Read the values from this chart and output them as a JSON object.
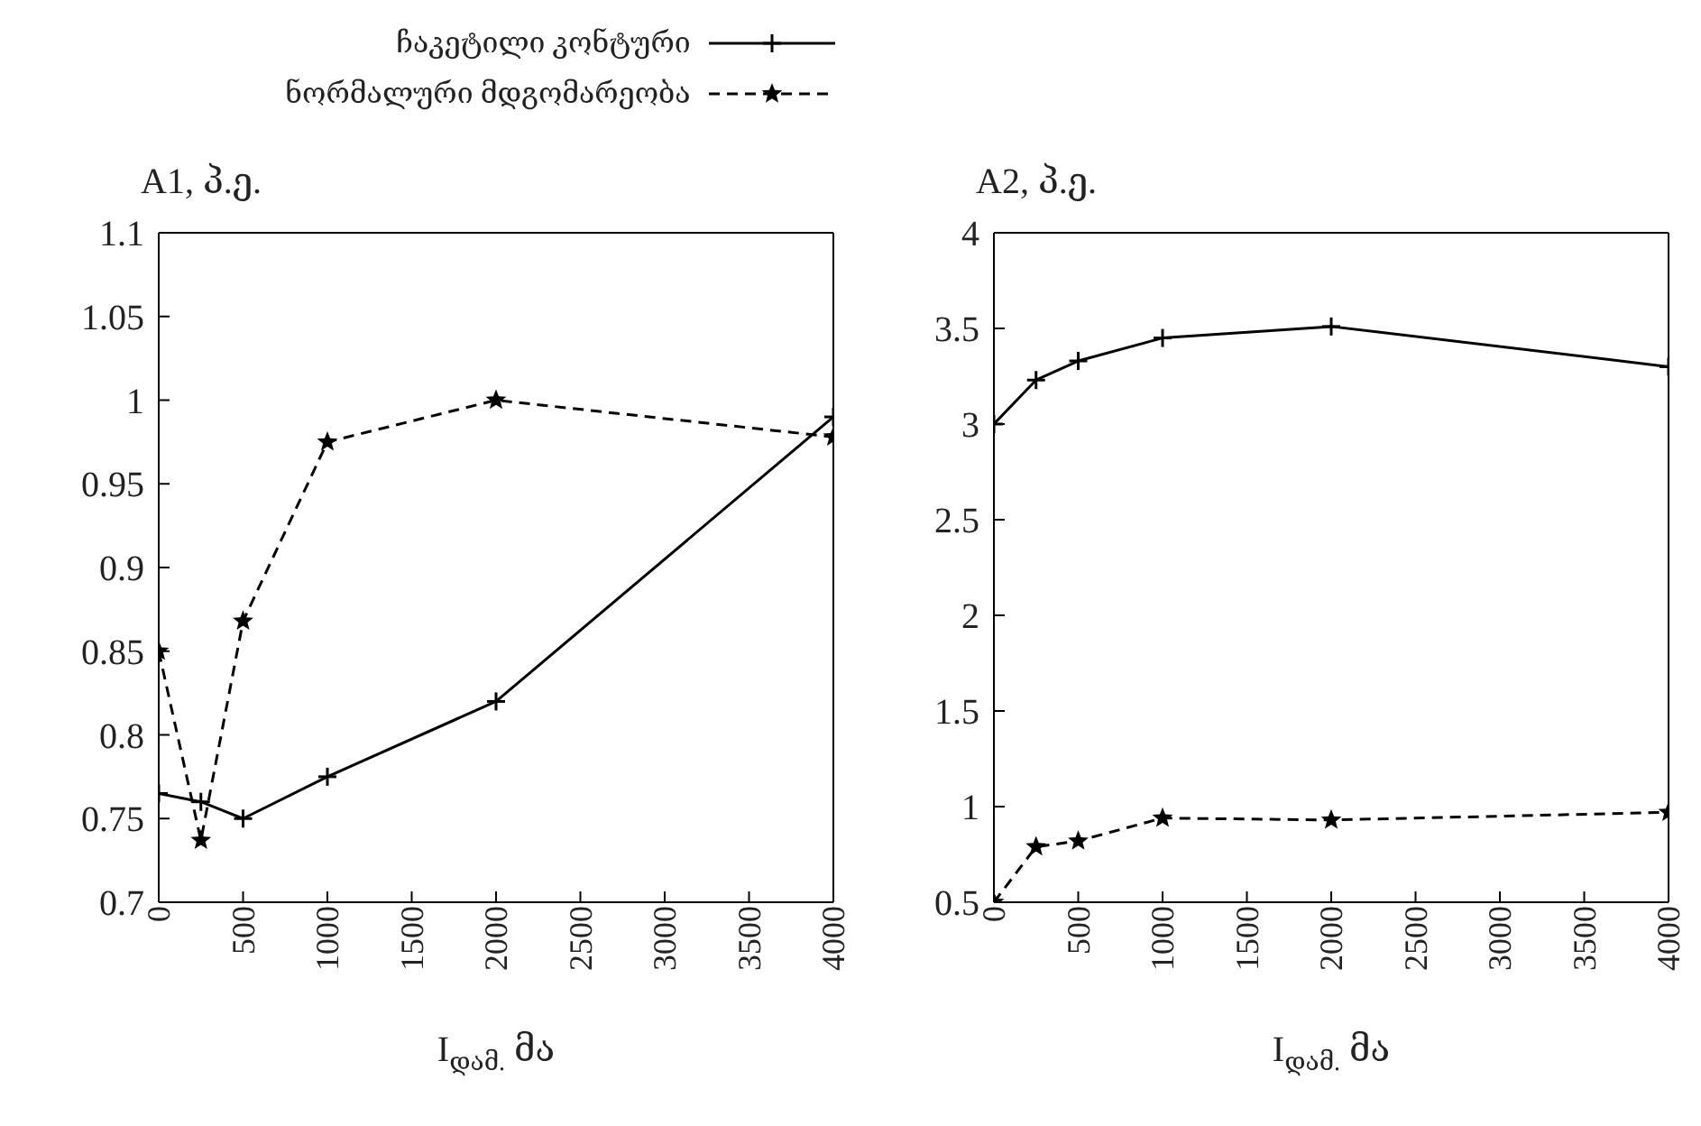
{
  "chart_data": [
    {
      "type": "line",
      "ylabel": "A1, პ.ე.",
      "xlabel": "I$_{დამ.}$ მა",
      "x": [
        0,
        250,
        500,
        1000,
        2000,
        4000
      ],
      "xlim": [
        0,
        4000
      ],
      "xticks": [
        0,
        500,
        1000,
        1500,
        2000,
        2500,
        3000,
        3500,
        4000
      ],
      "ylim": [
        0.7,
        1.1
      ],
      "yticks": [
        0.7,
        0.75,
        0.8,
        0.85,
        0.9,
        0.95,
        1,
        1.05,
        1.1
      ],
      "legend": "top",
      "grid": false,
      "series": [
        {
          "name": "ჩაკეტილი კონტური",
          "color": "#000000",
          "marker": "cross",
          "line_style": "solid",
          "values": [
            0.765,
            0.76,
            0.75,
            0.775,
            0.82,
            0.99
          ]
        },
        {
          "name": "ნორმალური მდგომარეობა",
          "color": "#000000",
          "marker": "star",
          "line_style": "dashed",
          "values": [
            0.85,
            0.737,
            0.868,
            0.975,
            1.0,
            0.978
          ]
        }
      ]
    },
    {
      "type": "line",
      "ylabel": "A2, პ.ე.",
      "xlabel": "I$_{დამ.}$ მა",
      "x": [
        0,
        250,
        500,
        1000,
        2000,
        4000
      ],
      "xlim": [
        0,
        4000
      ],
      "xticks": [
        0,
        500,
        1000,
        1500,
        2000,
        2500,
        3000,
        3500,
        4000
      ],
      "ylim": [
        0.5,
        4
      ],
      "yticks": [
        0.5,
        1,
        1.5,
        2,
        2.5,
        3,
        3.5,
        4
      ],
      "grid": false,
      "series": [
        {
          "color": "#000000",
          "marker": "cross",
          "line_style": "solid",
          "values": [
            3.0,
            3.23,
            3.33,
            3.45,
            3.51,
            3.3
          ]
        },
        {
          "color": "#000000",
          "marker": "star",
          "line_style": "dashed",
          "values": [
            0.5,
            0.79,
            0.82,
            0.94,
            0.93,
            0.97
          ]
        }
      ]
    }
  ]
}
